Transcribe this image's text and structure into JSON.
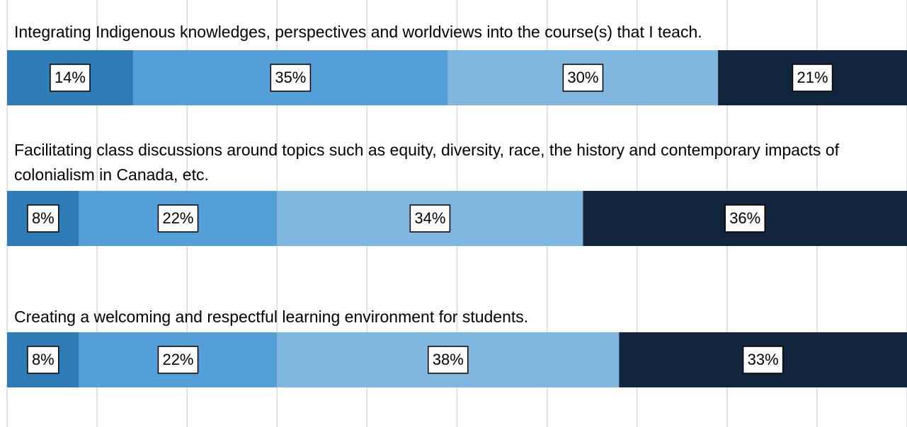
{
  "chart_data": {
    "type": "stacked-bar-horizontal",
    "categories": [
      "Integrating Indigenous knowledges, perspectives and worldviews into the course(s) that I teach.",
      "Facilitating class discussions around topics such as equity, diversity, race, the history and contemporary impacts of colonialism in Canada, etc.",
      "Creating a welcoming and respectful learning environment for students."
    ],
    "series": [
      {
        "color": "#2e7bb6",
        "values": [
          14,
          8,
          8
        ],
        "value_labels": [
          "14%",
          "8%",
          "8%"
        ]
      },
      {
        "color": "#559fd8",
        "values": [
          35,
          22,
          22
        ],
        "value_labels": [
          "35%",
          "22%",
          "22%"
        ]
      },
      {
        "color": "#80b7e0",
        "values": [
          30,
          34,
          38
        ],
        "value_labels": [
          "30%",
          "34%",
          "38%"
        ]
      },
      {
        "color": "#11263d",
        "values": [
          21,
          36,
          33
        ],
        "value_labels": [
          "21%",
          "36%",
          "33%"
        ]
      }
    ],
    "xlim": [
      0,
      100
    ],
    "xticks": [
      0,
      10,
      20,
      30,
      40,
      50,
      60,
      70,
      80,
      90,
      100
    ],
    "grid": true
  }
}
